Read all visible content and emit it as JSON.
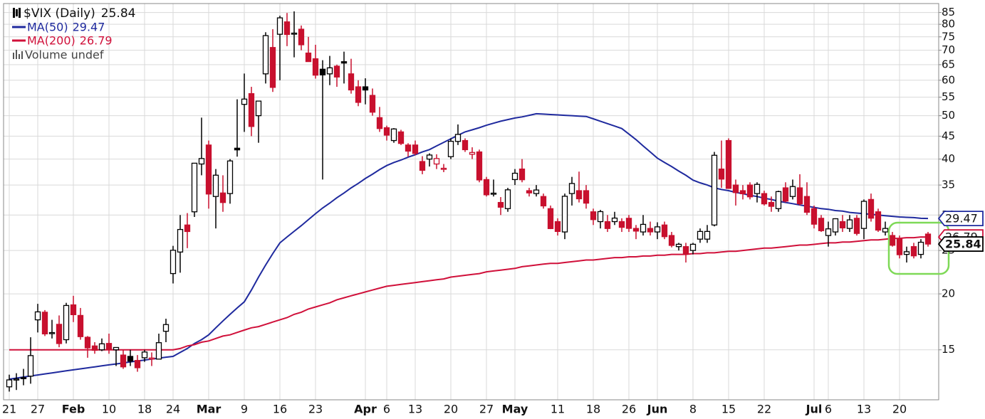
{
  "chart_data": {
    "type": "candlestick",
    "log_scale": true,
    "grid": true,
    "up_color": "#000000",
    "down_color": "#c8102e",
    "ylim": [
      11.6,
      89
    ],
    "yticks": [
      15,
      20,
      25,
      30,
      35,
      40,
      45,
      50,
      55,
      60,
      65,
      70,
      75,
      80,
      85
    ],
    "volume_legend": "Volume undef",
    "categories": [
      "21",
      null,
      null,
      null,
      "27",
      null,
      null,
      null,
      null,
      "Feb",
      null,
      null,
      null,
      null,
      "10",
      null,
      null,
      null,
      null,
      "18",
      null,
      null,
      null,
      "24",
      null,
      null,
      null,
      null,
      "Mar",
      null,
      null,
      null,
      null,
      "9",
      null,
      null,
      null,
      null,
      "16",
      null,
      null,
      null,
      null,
      "23",
      null,
      null,
      null,
      null,
      null,
      null,
      "Apr",
      null,
      null,
      "6",
      null,
      null,
      null,
      "13",
      null,
      null,
      null,
      null,
      "20",
      null,
      null,
      null,
      null,
      "27",
      null,
      null,
      null,
      "May",
      null,
      null,
      null,
      null,
      null,
      "11",
      null,
      null,
      null,
      null,
      "18",
      null,
      null,
      null,
      null,
      "26",
      null,
      null,
      null,
      "Jun",
      null,
      null,
      null,
      null,
      "8",
      null,
      null,
      null,
      null,
      "15",
      null,
      null,
      null,
      null,
      "22",
      null,
      null,
      null,
      null,
      null,
      null,
      "Jul",
      null,
      "6",
      null,
      null,
      null,
      null,
      "13",
      null,
      null,
      null,
      null,
      "20",
      null,
      null,
      null,
      null
    ],
    "ohlc": {
      "name": "$VIX (Daily)",
      "open": [
        12.4,
        12.9,
        13.0,
        13.1,
        17.5,
        18.2,
        16.3,
        17.1,
        15.8,
        18.9,
        17.9,
        16.0,
        15.3,
        15.0,
        15.5,
        15.0,
        14.6,
        14.5,
        14.2,
        14.4,
        14.3,
        14.3,
        16.5,
        22.2,
        24.8,
        28.5,
        30.5,
        39.0,
        43.0,
        33.0,
        33.6,
        33.5,
        42.3,
        53.0,
        56.0,
        50.0,
        62.0,
        71.0,
        76.0,
        81.0,
        76.4,
        78.0,
        69.0,
        67.0,
        63.5,
        62.0,
        64.5,
        66.0,
        62.0,
        58.0,
        58.0,
        55.5,
        49.5,
        47.0,
        44.0,
        46.0,
        43.0,
        43.0,
        39.5,
        40.0,
        39.0,
        38.0,
        40.5,
        43.8,
        44.0,
        41.0,
        41.5,
        36.0,
        33.5,
        32.0,
        31.0,
        36.0,
        38.0,
        34.0,
        33.5,
        33.0,
        31.0,
        29.0,
        27.5,
        33.5,
        34.0,
        34.0,
        30.5,
        29.0,
        29.0,
        29.0,
        29.0,
        29.5,
        28.0,
        27.5,
        28.0,
        27.5,
        28.5,
        27.0,
        25.5,
        25.5,
        25.0,
        26.5,
        26.5,
        28.5,
        38.0,
        44.0,
        35.0,
        34.0,
        35.0,
        33.5,
        33.5,
        32.0,
        31.0,
        34.5,
        33.0,
        34.5,
        33.0,
        31.0,
        29.5,
        27.0,
        27.5,
        29.0,
        28.0,
        29.5,
        28.0,
        32.5,
        30.5,
        27.5,
        27.0,
        26.5,
        24.5,
        25.5,
        24.5,
        27.2
      ],
      "high": [
        13.2,
        13.3,
        13.6,
        16.0,
        19.0,
        18.4,
        17.5,
        17.9,
        19.1,
        19.8,
        18.6,
        16.1,
        15.6,
        15.9,
        16.3,
        15.2,
        15.0,
        15.0,
        14.6,
        15.0,
        14.8,
        16.3,
        17.6,
        25.6,
        30.0,
        30.3,
        39.2,
        49.5,
        44.0,
        38.0,
        36.8,
        40.0,
        54.4,
        62.1,
        58.0,
        54.0,
        76.8,
        78.0,
        83.6,
        84.8,
        85.5,
        79.5,
        75.0,
        72.0,
        66.5,
        68.0,
        65.0,
        69.5,
        67.0,
        60.0,
        60.6,
        57.5,
        52.3,
        47.5,
        46.9,
        46.5,
        43.4,
        44.0,
        40.6,
        41.2,
        41.0,
        39.0,
        44.5,
        47.8,
        44.5,
        42.5,
        42.0,
        36.5,
        36.0,
        32.9,
        34.5,
        38.0,
        40.0,
        34.5,
        35.0,
        33.5,
        31.5,
        29.5,
        33.5,
        36.5,
        37.5,
        35.0,
        31.0,
        30.8,
        30.0,
        30.5,
        29.5,
        30.0,
        28.5,
        30.0,
        29.0,
        28.9,
        29.0,
        27.5,
        26.0,
        26.0,
        26.0,
        28.0,
        28.5,
        41.5,
        44.0,
        44.5,
        36.0,
        35.0,
        35.5,
        35.5,
        34.0,
        33.0,
        34.0,
        35.5,
        36.0,
        37.0,
        35.5,
        31.5,
        30.0,
        29.0,
        29.5,
        30.0,
        30.0,
        30.0,
        32.5,
        33.5,
        31.0,
        29.0,
        27.5,
        27.0,
        25.5,
        26.0,
        26.5,
        27.5
      ],
      "low": [
        12.1,
        12.2,
        12.5,
        12.6,
        16.4,
        16.1,
        15.9,
        15.2,
        15.5,
        17.3,
        15.8,
        14.4,
        14.7,
        14.9,
        14.7,
        13.8,
        13.6,
        13.8,
        13.4,
        14.1,
        13.8,
        14.3,
        15.6,
        21.1,
        22.3,
        25.3,
        29.7,
        36.8,
        31.0,
        28.0,
        30.5,
        31.8,
        40.5,
        46.0,
        45.0,
        43.5,
        59.0,
        56.5,
        60.0,
        71.5,
        67.5,
        70.0,
        66.0,
        60.5,
        36.0,
        58.5,
        58.0,
        59.0,
        56.0,
        52.5,
        53.0,
        50.0,
        46.0,
        44.0,
        43.5,
        43.0,
        40.5,
        40.8,
        37.0,
        38.5,
        38.0,
        37.4,
        40.0,
        43.0,
        41.5,
        40.0,
        35.5,
        33.0,
        33.0,
        30.0,
        30.5,
        35.0,
        35.5,
        33.0,
        33.0,
        31.0,
        27.9,
        27.0,
        26.5,
        31.5,
        32.0,
        31.0,
        28.5,
        28.0,
        27.5,
        28.5,
        27.5,
        27.5,
        26.5,
        27.0,
        27.0,
        26.5,
        26.5,
        25.4,
        25.0,
        23.5,
        24.5,
        26.0,
        26.0,
        28.3,
        34.5,
        34.5,
        31.5,
        32.5,
        32.5,
        32.0,
        31.5,
        30.5,
        30.5,
        32.0,
        32.5,
        31.5,
        30.0,
        28.0,
        27.5,
        25.5,
        27.0,
        27.5,
        27.5,
        27.0,
        26.5,
        29.0,
        27.5,
        27.0,
        25.5,
        24.0,
        23.5,
        24.0,
        24.0,
        25.5
      ],
      "close": [
        12.85,
        12.91,
        12.98,
        14.56,
        18.23,
        16.28,
        16.39,
        15.49,
        18.84,
        17.97,
        16.05,
        15.15,
        14.96,
        15.47,
        15.04,
        15.18,
        13.74,
        14.15,
        13.68,
        14.83,
        14.38,
        15.56,
        17.08,
        25.03,
        27.85,
        27.56,
        39.16,
        40.11,
        33.42,
        36.82,
        31.99,
        39.62,
        41.94,
        54.46,
        47.3,
        53.9,
        75.47,
        57.83,
        82.69,
        75.91,
        76.45,
        72.0,
        66.04,
        61.59,
        61.67,
        63.95,
        61.0,
        65.54,
        57.08,
        53.54,
        57.06,
        50.91,
        46.8,
        45.24,
        46.7,
        43.35,
        41.67,
        41.17,
        37.76,
        40.84,
        40.11,
        38.15,
        43.83,
        45.41,
        41.98,
        41.38,
        35.93,
        33.29,
        33.57,
        31.23,
        34.15,
        37.19,
        35.97,
        33.61,
        34.12,
        31.44,
        27.98,
        27.57,
        33.04,
        35.28,
        32.61,
        31.89,
        29.3,
        30.53,
        27.99,
        29.53,
        28.16,
        28.01,
        27.62,
        28.59,
        27.51,
        28.23,
        26.84,
        25.66,
        25.81,
        24.52,
        25.81,
        27.57,
        27.57,
        40.79,
        36.09,
        34.4,
        33.67,
        33.47,
        32.94,
        35.12,
        31.77,
        31.37,
        33.84,
        32.22,
        34.73,
        31.78,
        30.43,
        28.62,
        27.68,
        27.94,
        29.43,
        28.08,
        29.26,
        27.29,
        32.19,
        29.52,
        27.76,
        28.0,
        25.68,
        24.46,
        24.84,
        24.32,
        26.08,
        25.84
      ]
    },
    "series": [
      {
        "name": "MA(50)",
        "color": "#1f2a9e",
        "values": [
          12.9,
          12.97,
          13.04,
          13.11,
          13.18,
          13.25,
          13.32,
          13.39,
          13.46,
          13.53,
          13.6,
          13.67,
          13.74,
          13.81,
          13.88,
          13.95,
          14.02,
          14.09,
          14.16,
          14.23,
          14.3,
          14.37,
          14.44,
          14.5,
          14.8,
          15.1,
          15.5,
          15.8,
          16.2,
          16.8,
          17.4,
          18.0,
          18.6,
          19.2,
          20.4,
          21.8,
          23.2,
          24.6,
          26.0,
          26.8,
          27.6,
          28.4,
          29.3,
          30.2,
          31.1,
          31.9,
          32.8,
          33.6,
          34.5,
          35.3,
          36.2,
          37.0,
          37.9,
          38.7,
          39.3,
          39.8,
          40.4,
          40.9,
          41.5,
          42.0,
          42.8,
          43.6,
          44.4,
          45.2,
          46.0,
          46.5,
          47.0,
          47.6,
          48.1,
          48.6,
          49.0,
          49.4,
          49.7,
          50.1,
          50.5,
          50.4,
          50.3,
          50.2,
          50.1,
          50.0,
          49.9,
          49.8,
          49.2,
          48.6,
          48.0,
          47.4,
          46.8,
          45.5,
          44.2,
          42.8,
          41.5,
          40.2,
          39.3,
          38.5,
          37.6,
          36.8,
          35.9,
          35.4,
          35.0,
          34.5,
          34.2,
          34.0,
          33.7,
          33.5,
          33.2,
          33.0,
          32.7,
          32.5,
          32.2,
          32.0,
          31.8,
          31.6,
          31.4,
          31.2,
          31.0,
          30.9,
          30.7,
          30.6,
          30.4,
          30.3,
          30.2,
          30.1,
          30.0,
          29.9,
          29.8,
          29.7,
          29.65,
          29.6,
          29.5,
          29.47
        ]
      },
      {
        "name": "MA(200)",
        "color": "#d0103a",
        "values": [
          15.0,
          15.0,
          15.0,
          15.0,
          15.0,
          15.0,
          15.0,
          15.0,
          15.0,
          15.0,
          15.0,
          15.0,
          15.0,
          15.0,
          15.0,
          15.0,
          15.0,
          15.0,
          15.0,
          15.0,
          15.0,
          15.0,
          15.0,
          15.0,
          15.1,
          15.3,
          15.4,
          15.6,
          15.7,
          15.9,
          16.1,
          16.2,
          16.4,
          16.6,
          16.8,
          16.9,
          17.1,
          17.3,
          17.5,
          17.7,
          18.0,
          18.2,
          18.5,
          18.7,
          18.9,
          19.1,
          19.4,
          19.6,
          19.8,
          20.0,
          20.2,
          20.4,
          20.6,
          20.8,
          20.9,
          21.0,
          21.1,
          21.2,
          21.3,
          21.4,
          21.5,
          21.6,
          21.8,
          21.9,
          22.0,
          22.1,
          22.2,
          22.4,
          22.5,
          22.6,
          22.7,
          22.8,
          23.0,
          23.1,
          23.2,
          23.3,
          23.4,
          23.4,
          23.5,
          23.6,
          23.7,
          23.8,
          23.8,
          23.9,
          24.0,
          24.1,
          24.1,
          24.2,
          24.2,
          24.3,
          24.3,
          24.4,
          24.4,
          24.5,
          24.5,
          24.5,
          24.6,
          24.6,
          24.7,
          24.7,
          24.8,
          24.9,
          24.9,
          25.0,
          25.1,
          25.2,
          25.3,
          25.3,
          25.4,
          25.5,
          25.6,
          25.7,
          25.7,
          25.8,
          25.9,
          26.0,
          26.0,
          26.1,
          26.1,
          26.2,
          26.3,
          26.4,
          26.4,
          26.5,
          26.6,
          26.6,
          26.7,
          26.7,
          26.8,
          26.79
        ]
      }
    ]
  }
}
